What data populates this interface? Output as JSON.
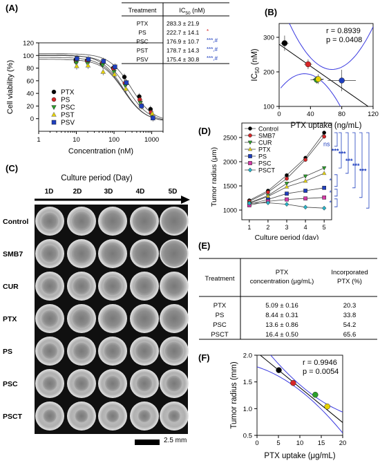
{
  "panel_labels": {
    "a": "(A)",
    "b": "(B)",
    "c": "(C)",
    "d": "(D)",
    "e": "(E)",
    "f": "(F)"
  },
  "panel_a": {
    "chart_data": {
      "type": "scatter",
      "xlabel": "Concentration (nM)",
      "ylabel": "Cell viability (%)",
      "xscale": "log",
      "xlim": [
        1,
        2000
      ],
      "ylim": [
        -20,
        120
      ],
      "x_ticks": [
        "1",
        "10",
        "100",
        "1000"
      ],
      "y_ticks": [
        "0",
        "20",
        "40",
        "60",
        "80",
        "100",
        "120"
      ],
      "x": [
        10,
        20,
        50,
        100,
        200,
        500,
        1000
      ],
      "legend_placement": "left",
      "series": [
        {
          "name": "PTX",
          "color": "#000000",
          "marker": "circle",
          "values": [
            93,
            92,
            87,
            80,
            66,
            35,
            15
          ]
        },
        {
          "name": "PS",
          "color": "#d62728",
          "marker": "circle",
          "values": [
            90,
            91,
            88,
            79,
            56,
            30,
            10
          ]
        },
        {
          "name": "PSC",
          "color": "#2ca02c",
          "marker": "triangle-down",
          "values": [
            88,
            87,
            85,
            74,
            52,
            25,
            5
          ]
        },
        {
          "name": "PST",
          "color": "#e6d200",
          "marker": "triangle-up",
          "values": [
            83,
            84,
            74,
            70,
            47,
            22,
            8
          ]
        },
        {
          "name": "PSV",
          "color": "#1f3fbf",
          "marker": "square",
          "values": [
            95,
            94,
            91,
            82,
            57,
            20,
            1
          ]
        }
      ]
    },
    "table": {
      "col1": "Treatment",
      "col2": "IC",
      "col2_sub": "50",
      "col2_unit": " (nM)",
      "rows": [
        {
          "treatment": "PTX",
          "value": "283.3 ± 21.9",
          "mark": ""
        },
        {
          "treatment": "PS",
          "value": "222.7 ± 14.1",
          "mark": "*"
        },
        {
          "treatment": "PSC",
          "value": "176.9 ± 10.7",
          "mark": "***,#"
        },
        {
          "treatment": "PST",
          "value": "178.7 ± 14.3",
          "mark": "***,#"
        },
        {
          "treatment": "PSV",
          "value": "175.4 ± 30.8",
          "mark": "***,#"
        }
      ]
    }
  },
  "panel_b": {
    "chart_data": {
      "type": "scatter",
      "xlabel": "PTX uptake (ng/mL)",
      "ylabel": "IC",
      "ylabel_sub": "50",
      "ylabel_unit": " (nM)",
      "xlim": [
        0,
        120
      ],
      "ylim": [
        100,
        340
      ],
      "x_ticks": [
        "0",
        "40",
        "80",
        "120"
      ],
      "y_ticks": [
        "100",
        "200",
        "300"
      ],
      "r": "r = 0.8939",
      "p": "p = 0.0408",
      "points": [
        {
          "x": 7,
          "y": 283,
          "color": "#000000",
          "xerr": 5,
          "yerr": 22
        },
        {
          "x": 37,
          "y": 222,
          "color": "#d62728",
          "xerr": 5,
          "yerr": 14
        },
        {
          "x": 48,
          "y": 177,
          "color": "#2ca02c",
          "xerr": 8,
          "yerr": 11
        },
        {
          "x": 50,
          "y": 179,
          "color": "#e6d200",
          "xerr": 7,
          "yerr": 14
        },
        {
          "x": 80,
          "y": 175,
          "color": "#1f3fbf",
          "xerr": 18,
          "yerr": 31
        }
      ],
      "fit": [
        [
          0,
          280
        ],
        [
          120,
          90
        ]
      ]
    }
  },
  "panel_c": {
    "title": "Culture period (Day)",
    "days": [
      "1D",
      "2D",
      "3D",
      "4D",
      "5D"
    ],
    "rows": [
      "Control",
      "SMB7",
      "CUR",
      "PTX",
      "PS",
      "PSC",
      "PSCT"
    ],
    "spheroid_sizes": [
      [
        0.62,
        0.7,
        0.78,
        0.85,
        0.92
      ],
      [
        0.62,
        0.72,
        0.8,
        0.88,
        0.95
      ],
      [
        0.58,
        0.62,
        0.66,
        0.7,
        0.74
      ],
      [
        0.6,
        0.68,
        0.74,
        0.78,
        0.8
      ],
      [
        0.56,
        0.6,
        0.62,
        0.64,
        0.66
      ],
      [
        0.52,
        0.54,
        0.55,
        0.56,
        0.57
      ],
      [
        0.48,
        0.47,
        0.46,
        0.45,
        0.44
      ]
    ],
    "scale_label": "2.5 mm"
  },
  "panel_d": {
    "chart_data": {
      "type": "line",
      "xlabel": "Culture period (day)",
      "ylabel": "Tumor radius (μm)",
      "x": [
        1,
        2,
        3,
        4,
        5
      ],
      "xlim": [
        0.6,
        5.4
      ],
      "ylim": [
        800,
        2800
      ],
      "x_ticks": [
        "1",
        "2",
        "3",
        "4",
        "5"
      ],
      "y_ticks": [
        "1000",
        "1500",
        "2000",
        "2500"
      ],
      "legend_placement": "top-left",
      "series": [
        {
          "name": "Control",
          "color": "#000000",
          "marker": "circle",
          "values": [
            1200,
            1400,
            1720,
            2080,
            2600
          ]
        },
        {
          "name": "SMB7",
          "color": "#d62728",
          "marker": "circle",
          "values": [
            1180,
            1370,
            1650,
            2040,
            2520
          ]
        },
        {
          "name": "CUR",
          "color": "#2ca02c",
          "marker": "triangle-down",
          "values": [
            1150,
            1300,
            1550,
            1700,
            1870
          ]
        },
        {
          "name": "PTX",
          "color": "#e6d200",
          "marker": "triangle-up",
          "values": [
            1140,
            1280,
            1480,
            1600,
            1760
          ]
        },
        {
          "name": "PS",
          "color": "#1f3fbf",
          "marker": "square",
          "values": [
            1120,
            1220,
            1340,
            1400,
            1460
          ]
        },
        {
          "name": "PSC",
          "color": "#d63aa8",
          "marker": "square",
          "values": [
            1100,
            1180,
            1220,
            1240,
            1260
          ]
        },
        {
          "name": "PSCT",
          "color": "#2ab3c8",
          "marker": "diamond",
          "values": [
            1140,
            1150,
            1120,
            1060,
            1040
          ]
        }
      ],
      "sig": {
        "ns": "ns",
        "stars": "***",
        "star": "*",
        "color": "#1f3fbf"
      }
    }
  },
  "panel_e": {
    "headers": {
      "treatment": "Treatment",
      "conc_line1": "PTX",
      "conc_line2": "concentration (μg/mL)",
      "inc_line1": "Incorporated",
      "inc_line2": "PTX (%)"
    },
    "rows": [
      {
        "treatment": "PTX",
        "conc": "5.09 ± 0.16",
        "inc": "20.3"
      },
      {
        "treatment": "PS",
        "conc": "8.44 ± 0.31",
        "inc": "33.8"
      },
      {
        "treatment": "PSC",
        "conc": "13.6 ± 0.86",
        "inc": "54.2"
      },
      {
        "treatment": "PSCT",
        "conc": "16.4 ± 0.50",
        "inc": "65.6"
      }
    ]
  },
  "panel_f": {
    "chart_data": {
      "type": "scatter",
      "xlabel": "PTX uptake (μg/mL)",
      "ylabel": "Tumor radius (mm)",
      "xlim": [
        0,
        20
      ],
      "ylim": [
        0.5,
        2.0
      ],
      "x_ticks": [
        "0",
        "5",
        "10",
        "15",
        "20"
      ],
      "y_ticks": [
        "0.5",
        "1.0",
        "1.5",
        "2.0"
      ],
      "r": "r = 0.9946",
      "p": "p = 0.0054",
      "points": [
        {
          "x": 5.09,
          "y": 1.72,
          "color": "#000000"
        },
        {
          "x": 8.44,
          "y": 1.48,
          "color": "#d62728"
        },
        {
          "x": 13.6,
          "y": 1.26,
          "color": "#2ca02c"
        },
        {
          "x": 16.4,
          "y": 1.04,
          "color": "#e6d200"
        }
      ],
      "fit": [
        [
          0,
          2.05
        ],
        [
          20,
          0.74
        ]
      ]
    }
  }
}
